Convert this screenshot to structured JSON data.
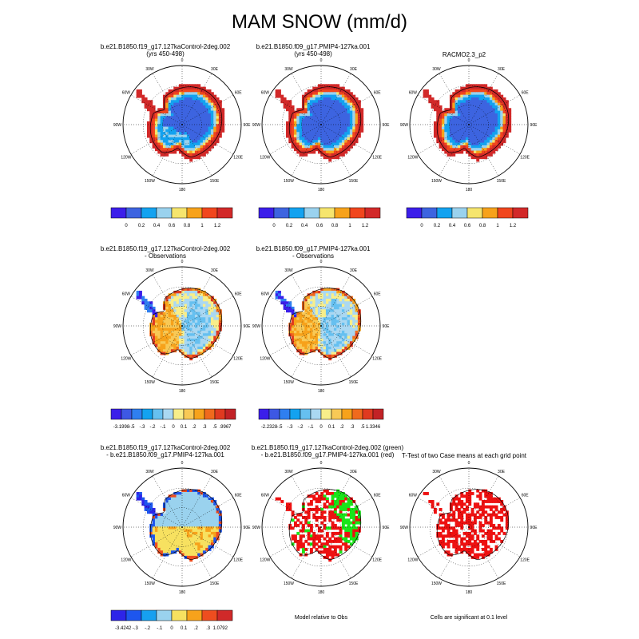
{
  "title": "MAM SNOW (mm/d)",
  "colors": {
    "abs_scale": [
      "#3b1eea",
      "#3d64e0",
      "#13a2f0",
      "#9ad2ee",
      "#f6e56d",
      "#f7a21b",
      "#f1461d",
      "#d22929"
    ],
    "diff_scale": [
      "#3b1eea",
      "#3d58e4",
      "#2f7ff0",
      "#13a2f0",
      "#66c0f0",
      "#aad8f2",
      "#f8ee8a",
      "#f8c956",
      "#f7a21b",
      "#f06a1d",
      "#e03a20",
      "#c22226"
    ],
    "sig_scale": [
      "#2d24e8",
      "#1d56ee",
      "#16a0f0",
      "#9ad2ee",
      "#f7e160",
      "#f7a21b",
      "#ee4d1f",
      "#d02929"
    ],
    "green": "#19e619",
    "red": "#ee1111"
  },
  "chart_data": [
    {
      "type": "heatmap",
      "projection": "south polar stereographic",
      "title_lines": [
        "b.e21.B1850.f19_g17.127kaControl-2deg.002",
        "(yrs 450-498)"
      ],
      "lon_labels": [
        "0",
        "30E",
        "60E",
        "90E",
        "120E",
        "150E",
        "180",
        "150W",
        "120W",
        "90W",
        "60W",
        "30W"
      ],
      "colorbar_labels": [
        "0",
        "0.2",
        "0.4",
        "0.6",
        "0.8",
        "1",
        "1.2"
      ]
    },
    {
      "type": "heatmap",
      "projection": "south polar stereographic",
      "title_lines": [
        "b.e21.B1850.f09_g17.PMIP4-127ka.001",
        "(yrs 450-498)"
      ],
      "lon_labels": [
        "0",
        "30E",
        "60E",
        "90E",
        "120E",
        "150E",
        "180",
        "150W",
        "120W",
        "90W",
        "60W",
        "30W"
      ],
      "colorbar_labels": [
        "0",
        "0.2",
        "0.4",
        "0.6",
        "0.8",
        "1",
        "1.2"
      ]
    },
    {
      "type": "heatmap",
      "projection": "south polar stereographic",
      "title_lines": [
        "RACMO2.3_p2"
      ],
      "lon_labels": [
        "0",
        "30E",
        "60E",
        "90E",
        "120E",
        "150E",
        "180",
        "150W",
        "120W",
        "90W",
        "60W",
        "30W"
      ],
      "colorbar_labels": [
        "0",
        "0.2",
        "0.4",
        "0.6",
        "0.8",
        "1",
        "1.2"
      ]
    },
    {
      "type": "heatmap",
      "projection": "south polar stereographic",
      "title_lines": [
        "b.e21.B1850.f19_g17.127kaControl-2deg.002",
        "- Observations"
      ],
      "lon_labels": [
        "0",
        "30E",
        "60E",
        "90E",
        "120E",
        "150E",
        "180",
        "150W",
        "120W",
        "90W",
        "60W",
        "30W"
      ],
      "colorbar_labels": [
        "-3.1998",
        "-.5",
        "-.3",
        "-.2",
        "-.1",
        "0",
        "0.1",
        ".2",
        ".3",
        ".5",
        ".9967"
      ]
    },
    {
      "type": "heatmap",
      "projection": "south polar stereographic",
      "title_lines": [
        "b.e21.B1850.f09_g17.PMIP4-127ka.001",
        "- Observations"
      ],
      "lon_labels": [
        "0",
        "30E",
        "60E",
        "90E",
        "120E",
        "150E",
        "180",
        "150W",
        "120W",
        "90W",
        "60W",
        "30W"
      ],
      "colorbar_labels": [
        "-2.2328",
        "-.5",
        "-.3",
        "-.2",
        "-.1",
        "0",
        "0.1",
        ".2",
        ".3",
        ".5",
        "1.3346"
      ]
    },
    {
      "type": "heatmap",
      "projection": "south polar stereographic",
      "title_lines": [
        "b.e21.B1850.f19_g17.127kaControl-2deg.002",
        "- b.e21.B1850.f09_g17.PMIP4-127ka.001"
      ],
      "lon_labels": [
        "0",
        "30E",
        "60E",
        "90E",
        "120E",
        "150E",
        "180",
        "150W",
        "120W",
        "90W",
        "60W",
        "30W"
      ],
      "colorbar_labels": [
        "-3.4242",
        "-.3",
        "-.2",
        "-.1",
        "0",
        "0.1",
        ".2",
        ".3",
        "1.0792"
      ]
    },
    {
      "type": "heatmap",
      "projection": "south polar stereographic",
      "title_lines": [
        "b.e21.B1850.f19_g17.127kaControl-2deg.002 (green)",
        "- b.e21.B1850.f09_g17.PMIP4-127ka.001 (red)"
      ],
      "lon_labels": [
        "0",
        "30E",
        "60E",
        "90E",
        "120E",
        "150E",
        "180",
        "150W",
        "120W",
        "90W",
        "60W",
        "30W"
      ],
      "note": "Model relative to Obs"
    },
    {
      "type": "heatmap",
      "projection": "south polar stereographic",
      "title_lines": [
        "T-Test of two Case means at each grid point"
      ],
      "lon_labels": [
        "0",
        "30E",
        "60E",
        "90E",
        "120E",
        "150E",
        "180",
        "150W",
        "120W",
        "90W",
        "60W",
        "30W"
      ],
      "note": "Cells are significant at 0.1 level"
    }
  ]
}
